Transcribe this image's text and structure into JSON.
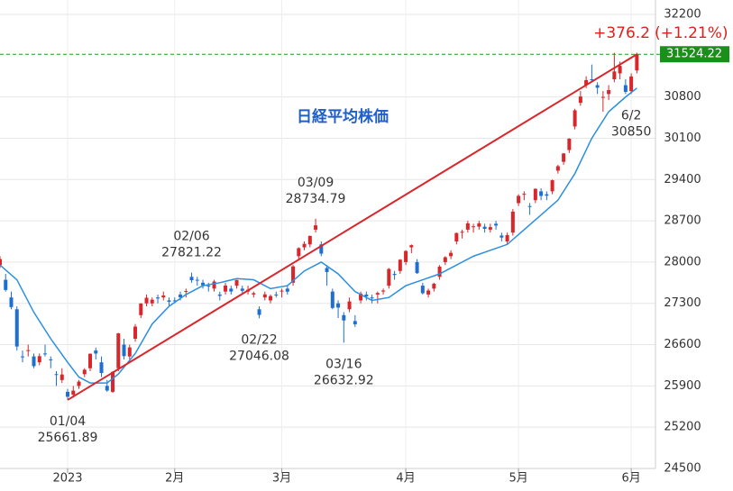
{
  "chart_data": {
    "type": "candlestick",
    "title": "日経平均株価",
    "categories": [
      null,
      null,
      null,
      null,
      null,
      null,
      null,
      null,
      null,
      null,
      null,
      null,
      "01/04",
      null,
      null,
      null,
      null,
      null,
      null,
      null,
      null,
      null,
      null,
      null,
      null,
      null,
      null,
      null,
      null,
      null,
      null,
      null,
      null,
      null,
      "02/06",
      null,
      null,
      null,
      null,
      null,
      null,
      null,
      null,
      null,
      null,
      null,
      "02/22",
      null,
      null,
      null,
      null,
      null,
      null,
      null,
      null,
      null,
      "03/09",
      null,
      null,
      null,
      null,
      "03/16",
      null,
      null,
      null,
      null,
      null,
      null,
      null,
      null,
      null,
      null,
      null,
      null,
      null,
      null,
      null,
      null,
      null,
      null,
      null,
      null,
      null,
      null,
      null,
      null,
      null,
      null,
      null,
      null,
      null,
      null,
      null,
      null,
      null,
      null,
      null,
      null,
      null,
      null,
      null,
      null,
      null,
      null,
      null,
      null,
      null,
      null,
      null,
      null,
      null,
      null,
      "6/2"
    ],
    "candles": [
      [
        27950,
        28100,
        27900,
        28051
      ],
      [
        27700,
        27800,
        27500,
        27527
      ],
      [
        27400,
        27500,
        27200,
        27237
      ],
      [
        27200,
        27250,
        26500,
        26568
      ],
      [
        26400,
        26500,
        26300,
        26387
      ],
      [
        26500,
        26600,
        26400,
        26507
      ],
      [
        26400,
        26450,
        26200,
        26235
      ],
      [
        26300,
        26450,
        26250,
        26405
      ],
      [
        26450,
        26600,
        26400,
        26447
      ],
      [
        26350,
        26400,
        26200,
        26340
      ],
      [
        26100,
        26150,
        25900,
        26093
      ],
      [
        26000,
        26200,
        25950,
        26094
      ],
      [
        25800,
        25850,
        25661.89,
        25716
      ],
      [
        25750,
        25900,
        25700,
        25820
      ],
      [
        25900,
        26000,
        25850,
        25973
      ],
      [
        26100,
        26200,
        26050,
        26175
      ],
      [
        26200,
        26450,
        26150,
        26446
      ],
      [
        26500,
        26550,
        26350,
        26449
      ],
      [
        26300,
        26400,
        26050,
        26119
      ],
      [
        25900,
        26000,
        25800,
        25822
      ],
      [
        25800,
        26150,
        25780,
        26138
      ],
      [
        26200,
        26800,
        26150,
        26791
      ],
      [
        26600,
        26700,
        26350,
        26405
      ],
      [
        26400,
        26600,
        26350,
        26553
      ],
      [
        26700,
        26950,
        26650,
        26906
      ],
      [
        27100,
        27300,
        27050,
        27299
      ],
      [
        27300,
        27450,
        27250,
        27395
      ],
      [
        27300,
        27400,
        27250,
        27362
      ],
      [
        27400,
        27450,
        27300,
        27382
      ],
      [
        27400,
        27500,
        27350,
        27433
      ],
      [
        27350,
        27400,
        27250,
        27327
      ],
      [
        27350,
        27400,
        27300,
        27346
      ],
      [
        27450,
        27500,
        27350,
        27402
      ],
      [
        27500,
        27550,
        27400,
        27509
      ],
      [
        27750,
        27821.22,
        27650,
        27693
      ],
      [
        27700,
        27750,
        27600,
        27685
      ],
      [
        27650,
        27700,
        27550,
        27606
      ],
      [
        27600,
        27650,
        27500,
        27584
      ],
      [
        27550,
        27700,
        27500,
        27670
      ],
      [
        27450,
        27500,
        27350,
        27427
      ],
      [
        27500,
        27650,
        27450,
        27602
      ],
      [
        27550,
        27600,
        27450,
        27501
      ],
      [
        27600,
        27700,
        27550,
        27696
      ],
      [
        27550,
        27600,
        27450,
        27513
      ],
      [
        27500,
        27600,
        27450,
        27531
      ],
      [
        27450,
        27500,
        27400,
        27473
      ],
      [
        27200,
        27250,
        27046.08,
        27104
      ],
      [
        27400,
        27500,
        27350,
        27453
      ],
      [
        27350,
        27450,
        27300,
        27423
      ],
      [
        27450,
        27500,
        27400,
        27445
      ],
      [
        27500,
        27550,
        27400,
        27516
      ],
      [
        27550,
        27600,
        27450,
        27498
      ],
      [
        27650,
        27950,
        27600,
        27927
      ],
      [
        28100,
        28250,
        28050,
        28237
      ],
      [
        28250,
        28350,
        28200,
        28309
      ],
      [
        28300,
        28450,
        28250,
        28444
      ],
      [
        28550,
        28734.79,
        28500,
        28623
      ],
      [
        28300,
        28350,
        28100,
        28143
      ],
      [
        27900,
        27950,
        27600,
        27832
      ],
      [
        27500,
        27550,
        27200,
        27222
      ],
      [
        27300,
        27350,
        27050,
        27229
      ],
      [
        27100,
        27150,
        26632.92,
        27010
      ],
      [
        27200,
        27400,
        27150,
        27333
      ],
      [
        27000,
        27100,
        26900,
        26945
      ],
      [
        27350,
        27500,
        27300,
        27466
      ],
      [
        27450,
        27500,
        27350,
        27419
      ],
      [
        27400,
        27450,
        27300,
        27385
      ],
      [
        27450,
        27500,
        27300,
        27476
      ],
      [
        27500,
        27550,
        27450,
        27518
      ],
      [
        27600,
        27900,
        27550,
        27883
      ],
      [
        27800,
        27850,
        27700,
        27782
      ],
      [
        27850,
        28050,
        27800,
        28041
      ],
      [
        28000,
        28200,
        27950,
        28188
      ],
      [
        28250,
        28300,
        28150,
        28287
      ],
      [
        28000,
        28050,
        27800,
        27813
      ],
      [
        27600,
        27650,
        27450,
        27472
      ],
      [
        27450,
        27550,
        27400,
        27518
      ],
      [
        27550,
        27650,
        27500,
        27633
      ],
      [
        27750,
        27950,
        27700,
        27923
      ],
      [
        28000,
        28100,
        27950,
        28082
      ],
      [
        28100,
        28200,
        28050,
        28157
      ],
      [
        28350,
        28500,
        28300,
        28493
      ],
      [
        28500,
        28550,
        28400,
        28514
      ],
      [
        28550,
        28700,
        28500,
        28658
      ],
      [
        28600,
        28650,
        28500,
        28606
      ],
      [
        28600,
        28700,
        28550,
        28657
      ],
      [
        28600,
        28650,
        28500,
        28564
      ],
      [
        28550,
        28650,
        28500,
        28593
      ],
      [
        28650,
        28700,
        28550,
        28620
      ],
      [
        28450,
        28500,
        28350,
        28416
      ],
      [
        28350,
        28500,
        28300,
        28457
      ],
      [
        28500,
        28900,
        28450,
        28856
      ],
      [
        29000,
        29150,
        28950,
        29123
      ],
      [
        29150,
        29200,
        29050,
        29157
      ],
      [
        28950,
        29000,
        28800,
        28949
      ],
      [
        29050,
        29250,
        29000,
        29242
      ],
      [
        29200,
        29250,
        29050,
        29122
      ],
      [
        29150,
        29200,
        29050,
        29126
      ],
      [
        29200,
        29400,
        29150,
        29388
      ],
      [
        29550,
        29650,
        29500,
        29626
      ],
      [
        29700,
        29850,
        29650,
        29842
      ],
      [
        29900,
        30100,
        29850,
        30093
      ],
      [
        30300,
        30600,
        30250,
        30573
      ],
      [
        30700,
        30900,
        30650,
        30808
      ],
      [
        31000,
        31150,
        30950,
        31086
      ],
      [
        31100,
        31350,
        31050,
        31086
      ],
      [
        31000,
        31050,
        30850,
        30957
      ],
      [
        30800,
        30900,
        30550,
        30801
      ],
      [
        30850,
        31000,
        30750,
        30916
      ],
      [
        31100,
        31550,
        31050,
        31233
      ],
      [
        31200,
        31400,
        31100,
        31328
      ],
      [
        31000,
        31100,
        30850,
        30887
      ],
      [
        30900,
        31200,
        30850,
        31148
      ],
      [
        31250,
        31550,
        31200,
        31524.22
      ]
    ],
    "up_color": "#d9262b",
    "down_color": "#1e6fd0",
    "ma": {
      "color": "#2a8fe0",
      "x": [
        0,
        3,
        6,
        9,
        12,
        14,
        16,
        19,
        21,
        24,
        27,
        30,
        33,
        36,
        39,
        42,
        45,
        48,
        51,
        54,
        57,
        60,
        63,
        66,
        69,
        72,
        75,
        78,
        81,
        84,
        87,
        90,
        93,
        96,
        99,
        102,
        105,
        108,
        111,
        113
      ],
      "values": [
        27950,
        27700,
        27150,
        26700,
        26300,
        26050,
        25950,
        25950,
        26100,
        26450,
        26950,
        27250,
        27450,
        27600,
        27650,
        27720,
        27700,
        27550,
        27600,
        27850,
        28000,
        27800,
        27500,
        27350,
        27400,
        27600,
        27700,
        27800,
        27950,
        28100,
        28200,
        28300,
        28550,
        28800,
        29050,
        29500,
        30100,
        30550,
        30800,
        30950
      ]
    },
    "trend_color": "#d9262b",
    "change": {
      "value": 376.2,
      "label": "+376.2"
    },
    "change_pct": {
      "value": 1.21,
      "label": "(+1.21%)"
    },
    "xlim": [
      0,
      116.3
    ],
    "xticks": [
      {
        "value": 12,
        "label": "2023"
      },
      {
        "value": 31,
        "label": "2月"
      },
      {
        "value": 50,
        "label": "3月"
      },
      {
        "value": 72,
        "label": "4月"
      },
      {
        "value": 92,
        "label": "5月"
      },
      {
        "value": 112,
        "label": "6月"
      }
    ],
    "ylim": [
      24500,
      32200
    ],
    "yticks": [
      24500,
      25200,
      25900,
      26600,
      27300,
      28000,
      28700,
      29400,
      30100,
      30800,
      32200
    ],
    "grid": true
  }
}
